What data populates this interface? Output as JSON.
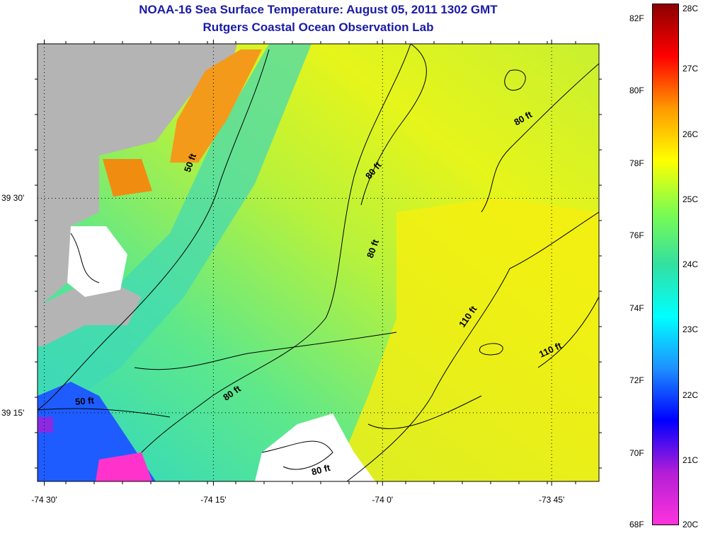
{
  "title": {
    "line1": "NOAA-16 Sea Surface Temperature:  August 05, 2011 1302 GMT",
    "line2": "Rutgers Coastal Ocean Observation Lab"
  },
  "map": {
    "x_ticks": [
      {
        "label": "-74 30'",
        "lon": -74.5
      },
      {
        "label": "-74 15'",
        "lon": -74.25
      },
      {
        "label": "-74 0'",
        "lon": -74.0
      },
      {
        "label": "-73 45'",
        "lon": -73.75
      }
    ],
    "y_ticks": [
      {
        "label": "39 30'",
        "lat": 39.5
      },
      {
        "label": "39 15'",
        "lat": 39.25
      }
    ],
    "lon_range": [
      -74.51,
      -73.68
    ],
    "lat_range": [
      39.17,
      39.68
    ],
    "contour_labels": [
      {
        "text": "50 ft",
        "lon": -74.28,
        "lat": 39.54,
        "rotate": -70
      },
      {
        "text": "50 ft",
        "lon": -74.44,
        "lat": 39.26,
        "rotate": -5
      },
      {
        "text": "80 ft",
        "lon": -74.01,
        "lat": 39.53,
        "rotate": -50
      },
      {
        "text": "80 ft",
        "lon": -73.79,
        "lat": 39.59,
        "rotate": -30
      },
      {
        "text": "80 ft",
        "lon": -74.01,
        "lat": 39.44,
        "rotate": -70
      },
      {
        "text": "80 ft",
        "lon": -74.22,
        "lat": 39.27,
        "rotate": -35
      },
      {
        "text": "80 ft",
        "lon": -74.09,
        "lat": 39.18,
        "rotate": -15
      },
      {
        "text": "110 ft",
        "lon": -73.87,
        "lat": 39.36,
        "rotate": -55
      },
      {
        "text": "110 ft",
        "lon": -73.75,
        "lat": 39.32,
        "rotate": -25
      }
    ],
    "colors": {
      "land": "#b4b4b4",
      "no_data": "#ffffff",
      "contour": "#000000"
    }
  },
  "colorbar": {
    "f_labels": [
      "82F",
      "80F",
      "78F",
      "76F",
      "74F",
      "72F",
      "70F",
      "68F"
    ],
    "f_values": [
      82,
      80,
      78,
      76,
      74,
      72,
      70,
      68
    ],
    "c_labels": [
      "28C",
      "27C",
      "26C",
      "25C",
      "24C",
      "23C",
      "22C",
      "21C",
      "20C"
    ],
    "c_values": [
      28,
      27,
      26,
      25,
      24,
      23,
      22,
      21,
      20
    ],
    "range_c": [
      20,
      28
    ],
    "stops": [
      "#ff33dd",
      "#b21ed6",
      "#0000ff",
      "#1e90ff",
      "#00ffff",
      "#33e0a0",
      "#7cfc50",
      "#ffff00",
      "#ff9900",
      "#ff0000",
      "#8b0000"
    ]
  }
}
